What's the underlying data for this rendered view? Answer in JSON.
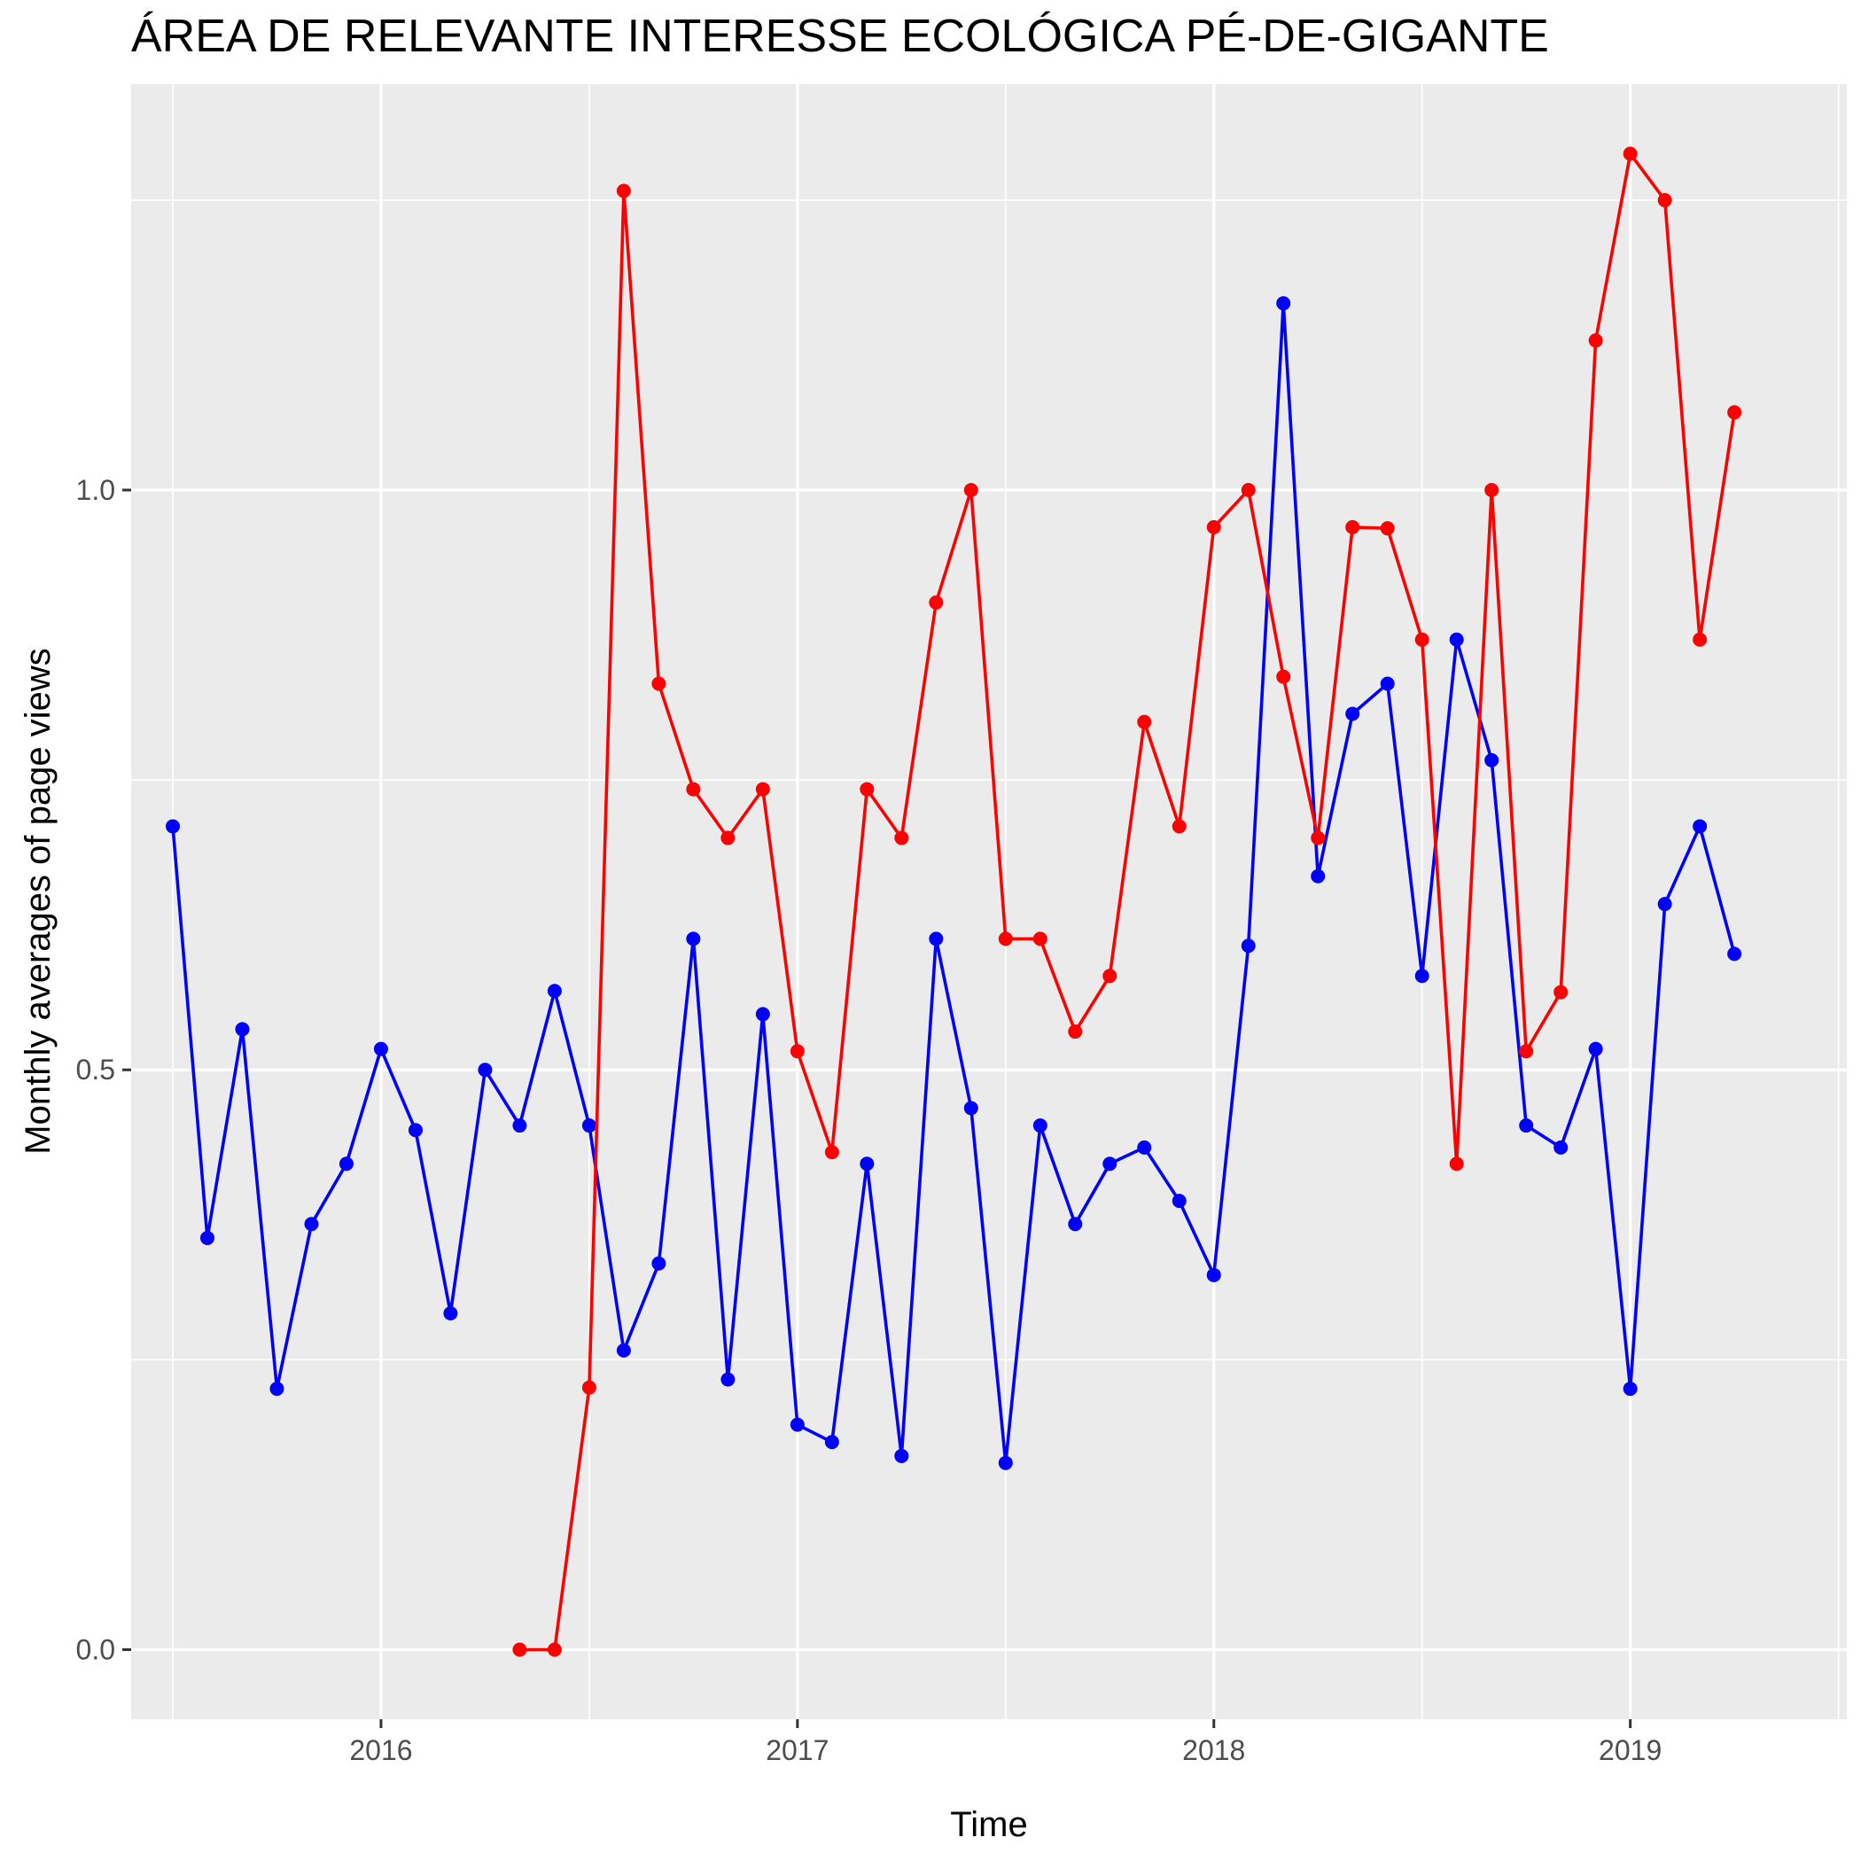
{
  "chart_data": {
    "type": "line",
    "title": "ÁREA DE RELEVANTE INTERESSE ECOLÓGICA PÉ-DE-GIGANTE",
    "xlabel": "Time",
    "ylabel": "Monthly averages of page views",
    "xlim": [
      2015.4,
      2019.52
    ],
    "ylim": [
      -0.06,
      1.35
    ],
    "x_ticks": [
      2016,
      2017,
      2018,
      2019
    ],
    "x_tick_labels": [
      "2016",
      "2017",
      "2018",
      "2019"
    ],
    "y_ticks": [
      0.0,
      0.5,
      1.0
    ],
    "y_tick_labels": [
      "0.0",
      "0.5",
      "1.0"
    ],
    "grid": true,
    "legend": "none",
    "series": [
      {
        "color": "#0000ff",
        "x": [
          2015.5,
          2015.583,
          2015.667,
          2015.75,
          2015.833,
          2015.917,
          2016.0,
          2016.083,
          2016.167,
          2016.25,
          2016.333,
          2016.417,
          2016.5,
          2016.583,
          2016.667,
          2016.75,
          2016.833,
          2016.917,
          2017.0,
          2017.083,
          2017.167,
          2017.25,
          2017.333,
          2017.417,
          2017.5,
          2017.583,
          2017.667,
          2017.75,
          2017.833,
          2017.917,
          2018.0,
          2018.083,
          2018.167,
          2018.25,
          2018.333,
          2018.417,
          2018.5,
          2018.583,
          2018.667,
          2018.75,
          2018.833,
          2018.917,
          2019.0,
          2019.083,
          2019.167,
          2019.25
        ],
        "values": [
          0.71,
          0.355,
          0.535,
          0.225,
          0.367,
          0.419,
          0.518,
          0.448,
          0.29,
          0.5,
          0.452,
          0.568,
          0.452,
          0.258,
          0.333,
          0.613,
          0.233,
          0.548,
          0.194,
          0.179,
          0.419,
          0.167,
          0.613,
          0.467,
          0.161,
          0.452,
          0.367,
          0.419,
          0.433,
          0.387,
          0.323,
          0.607,
          1.161,
          0.667,
          0.807,
          0.833,
          0.581,
          0.871,
          0.767,
          0.452,
          0.433,
          0.518,
          0.225,
          0.643,
          0.71,
          0.6
        ]
      },
      {
        "color": "#ff0000",
        "x": [
          2016.333,
          2016.417,
          2016.5,
          2016.583,
          2016.667,
          2016.75,
          2016.833,
          2016.917,
          2017.0,
          2017.083,
          2017.167,
          2017.25,
          2017.333,
          2017.417,
          2017.5,
          2017.583,
          2017.667,
          2017.75,
          2017.833,
          2017.917,
          2018.0,
          2018.083,
          2018.167,
          2018.25,
          2018.333,
          2018.417,
          2018.5,
          2018.583,
          2018.667,
          2018.75,
          2018.833,
          2018.917,
          2019.0,
          2019.083,
          2019.167,
          2019.25
        ],
        "values": [
          0.0,
          0.0,
          0.226,
          1.258,
          0.833,
          0.742,
          0.7,
          0.742,
          0.516,
          0.429,
          0.742,
          0.7,
          0.903,
          1.0,
          0.613,
          0.613,
          0.533,
          0.581,
          0.8,
          0.71,
          0.968,
          1.0,
          0.839,
          0.7,
          0.968,
          0.967,
          0.871,
          0.419,
          1.0,
          0.516,
          0.567,
          1.129,
          1.29,
          1.25,
          0.871,
          1.067
        ]
      }
    ]
  }
}
